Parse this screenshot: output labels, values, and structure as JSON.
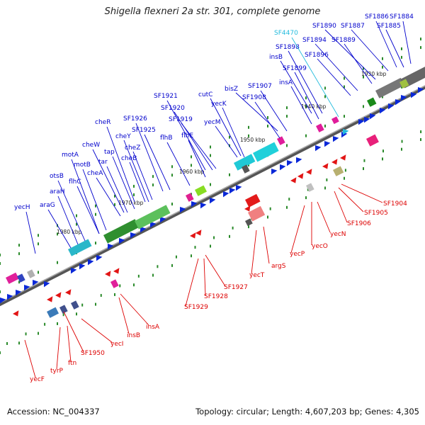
{
  "title": "Shigella flexneri 2a str. 301, complete genome",
  "footer": {
    "accession": "Accession: NC_004337",
    "topology": "Topology: circular; Length: 4,607,203 bp; Genes: 4,305"
  },
  "colors": {
    "forward_label": "#0000cc",
    "reverse_label": "#dd0000",
    "highlight_label": "#22bbdd",
    "backbone": "#888888"
  },
  "ticks": [
    "1930 kbp",
    "1940 kbp",
    "1950 kbp",
    "1960 kbp",
    "1970 kbp",
    "1980 kbp"
  ],
  "forward_labels": [
    "SF1884",
    "SF1885",
    "SF1886",
    "SF1887",
    "SF1890",
    "SF1889",
    "SF1894",
    "SF1896",
    "SF1898",
    "SF1899",
    "insB",
    "insA",
    "bisZ",
    "SF1907",
    "SF1908",
    "cutC",
    "yecK",
    "yecM",
    "SF1921",
    "SF1920",
    "SF1919",
    "flhE",
    "flhB",
    "SF1926",
    "SF1925",
    "cheR",
    "cheY",
    "cheZ",
    "cheB",
    "cheW",
    "tap",
    "tar",
    "cheA",
    "motA",
    "motB",
    "flhC",
    "otsB",
    "araH",
    "araG",
    "yecH"
  ],
  "highlight_labels": [
    "SF4470"
  ],
  "reverse_labels": [
    "SF1904",
    "SF1905",
    "SF1906",
    "yecN",
    "yecO",
    "yecP",
    "argS",
    "yecT",
    "SF1927",
    "SF1928",
    "SF1929",
    "insA",
    "insB",
    "yecI",
    "SF1950",
    "ftn",
    "tyrP",
    "yecF"
  ]
}
